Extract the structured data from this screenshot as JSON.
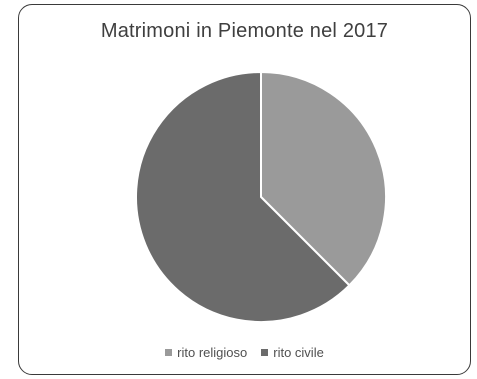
{
  "chart_data": {
    "type": "pie",
    "title": "Matrimoni in Piemonte nel 2017",
    "categories": [
      "rito religioso",
      "rito civile"
    ],
    "values": [
      37.5,
      62.5
    ],
    "colors": [
      "#9a9a9a",
      "#6b6b6b"
    ],
    "start_angle_deg": 0,
    "direction": "clockwise",
    "legend_position": "bottom",
    "slice_border_color": "#ffffff"
  }
}
